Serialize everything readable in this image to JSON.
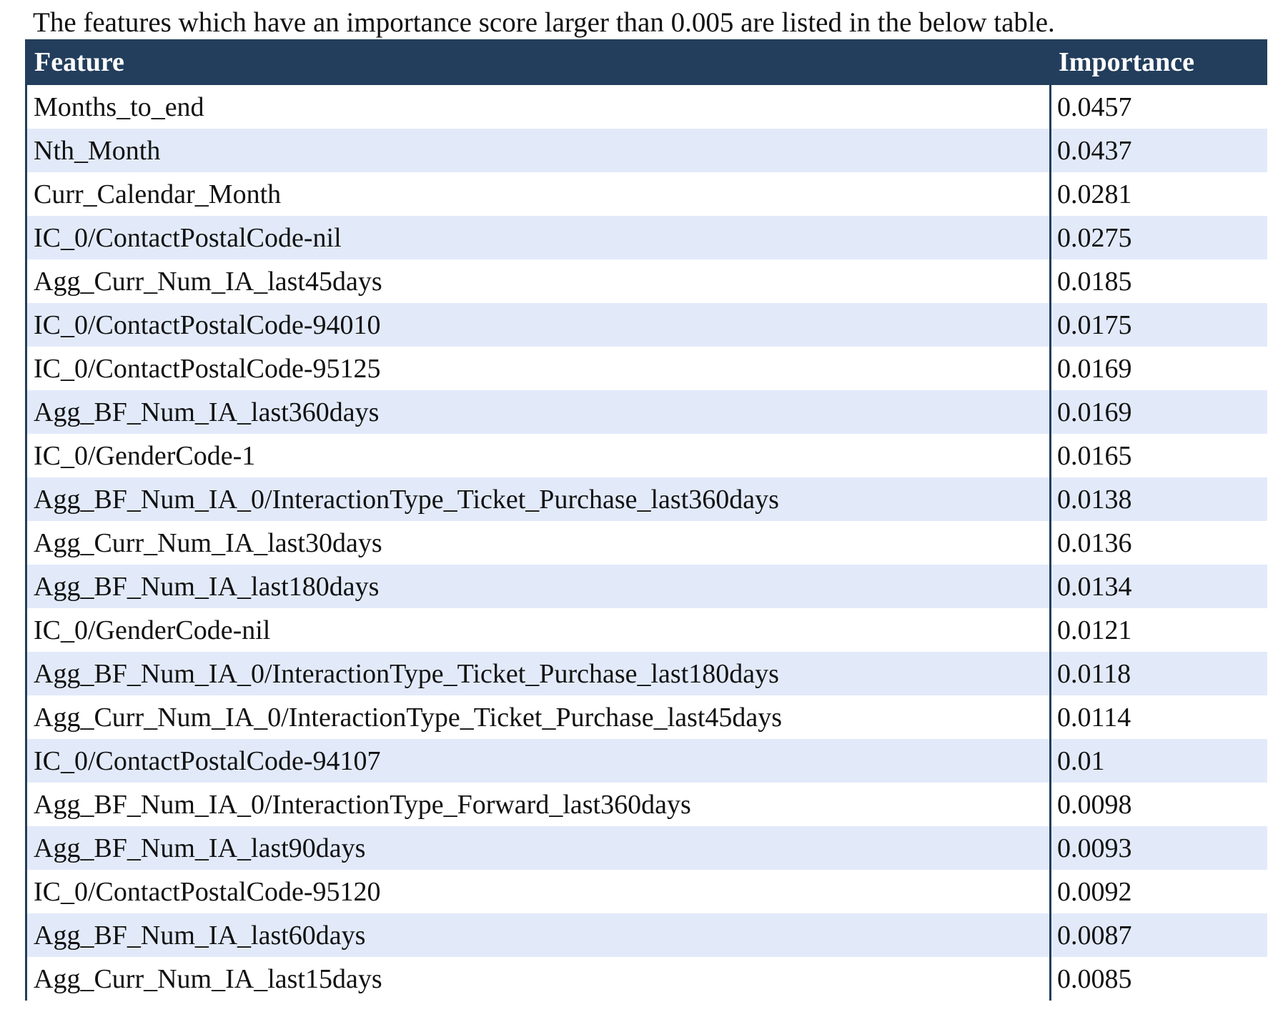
{
  "intro": "The features which have an importance score larger than 0.005 are listed in the below table.",
  "table": {
    "headers": [
      "Feature",
      "Importance"
    ],
    "rows": [
      [
        "Months_to_end",
        "0.0457"
      ],
      [
        "Nth_Month",
        "0.0437"
      ],
      [
        "Curr_Calendar_Month",
        "0.0281"
      ],
      [
        "IC_0/ContactPostalCode-nil",
        "0.0275"
      ],
      [
        "Agg_Curr_Num_IA_last45days",
        "0.0185"
      ],
      [
        "IC_0/ContactPostalCode-94010",
        "0.0175"
      ],
      [
        "IC_0/ContactPostalCode-95125",
        "0.0169"
      ],
      [
        "Agg_BF_Num_IA_last360days",
        "0.0169"
      ],
      [
        "IC_0/GenderCode-1",
        "0.0165"
      ],
      [
        "Agg_BF_Num_IA_0/InteractionType_Ticket_Purchase_last360days",
        "0.0138"
      ],
      [
        "Agg_Curr_Num_IA_last30days",
        "0.0136"
      ],
      [
        "Agg_BF_Num_IA_last180days",
        "0.0134"
      ],
      [
        "IC_0/GenderCode-nil",
        "0.0121"
      ],
      [
        "Agg_BF_Num_IA_0/InteractionType_Ticket_Purchase_last180days",
        "0.0118"
      ],
      [
        "Agg_Curr_Num_IA_0/InteractionType_Ticket_Purchase_last45days",
        "0.0114"
      ],
      [
        "IC_0/ContactPostalCode-94107",
        "0.01"
      ],
      [
        "Agg_BF_Num_IA_0/InteractionType_Forward_last360days",
        "0.0098"
      ],
      [
        "Agg_BF_Num_IA_last90days",
        "0.0093"
      ],
      [
        "IC_0/ContactPostalCode-95120",
        "0.0092"
      ],
      [
        "Agg_BF_Num_IA_last60days",
        "0.0087"
      ],
      [
        "Agg_Curr_Num_IA_last15days",
        "0.0085"
      ]
    ]
  },
  "colors": {
    "header_bg": "#233e5c",
    "header_text": "#ffffff",
    "stripe_bg": "#e2eafa",
    "row_bg": "#ffffff"
  }
}
